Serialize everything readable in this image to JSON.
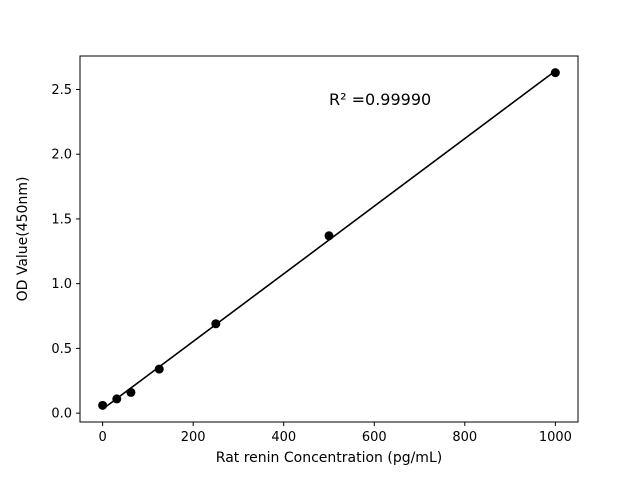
{
  "figure": {
    "background": "#ffffff"
  },
  "chart_data": {
    "type": "scatter",
    "title": "",
    "xlabel": "Rat renin Concentration (pg/mL)",
    "ylabel": "OD Value(450nm)",
    "x": [
      0,
      31.25,
      62.5,
      125,
      250,
      500,
      1000
    ],
    "y": [
      0.06,
      0.11,
      0.16,
      0.34,
      0.69,
      1.37,
      2.63
    ],
    "fit_line": true,
    "annotation": {
      "text": "R² =0.99990",
      "x": 500,
      "y": 2.38
    },
    "xlim": [
      -50,
      1050
    ],
    "ylim": [
      -0.0685,
      2.7585
    ],
    "xticks": {
      "values": [
        0,
        200,
        400,
        600,
        800,
        1000
      ],
      "labels": [
        "0",
        "200",
        "400",
        "600",
        "800",
        "1000"
      ]
    },
    "yticks": {
      "values": [
        0,
        0.5,
        1.0,
        1.5,
        2.0,
        2.5
      ],
      "labels": [
        "0.0",
        "0.5",
        "1.0",
        "1.5",
        "2.0",
        "2.5"
      ]
    },
    "grid": false,
    "legend": "none",
    "marker_color": "#000000",
    "line_color": "#000000"
  }
}
